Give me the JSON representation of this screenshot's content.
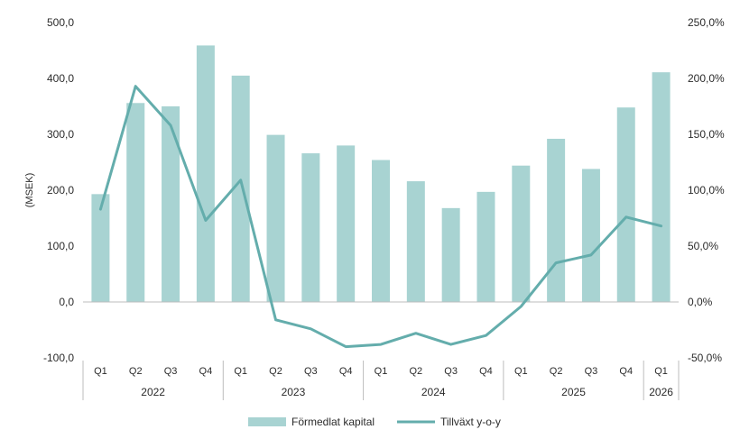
{
  "chart_data": {
    "type": "bar+line",
    "ylabel": "(MSEK)",
    "ylim": [
      -100,
      500
    ],
    "y2lim": [
      -50,
      250
    ],
    "yticks": [
      "-100,0",
      "0,0",
      "100,0",
      "200,0",
      "300,0",
      "400,0",
      "500,0"
    ],
    "y2ticks": [
      "-50,0%",
      "0,0%",
      "50,0%",
      "100,0%",
      "150,0%",
      "200,0%",
      "250,0%"
    ],
    "categories": [
      "Q1",
      "Q2",
      "Q3",
      "Q4",
      "Q1",
      "Q2",
      "Q3",
      "Q4",
      "Q1",
      "Q2",
      "Q3",
      "Q4",
      "Q1",
      "Q2",
      "Q3",
      "Q4",
      "Q1"
    ],
    "years": [
      {
        "label": "2022",
        "span": 4
      },
      {
        "label": "2023",
        "span": 4
      },
      {
        "label": "2024",
        "span": 4
      },
      {
        "label": "2025",
        "span": 4
      },
      {
        "label": "2026",
        "span": 1
      }
    ],
    "series": [
      {
        "name": "Förmedlat kapital",
        "type": "bar",
        "axis": "left",
        "color": "#a8d3d2",
        "values": [
          193,
          356,
          350,
          459,
          405,
          299,
          266,
          280,
          254,
          216,
          168,
          197,
          244,
          292,
          238,
          348,
          411
        ]
      },
      {
        "name": "Tillväxt y-o-y",
        "type": "line",
        "axis": "right",
        "color": "#64adac",
        "values": [
          83,
          193,
          158,
          73,
          109,
          -16,
          -24,
          -40,
          -38,
          -28,
          -38,
          -30,
          -4,
          35,
          42,
          76,
          68
        ]
      }
    ],
    "legend": "bottom-center",
    "grid": false
  }
}
